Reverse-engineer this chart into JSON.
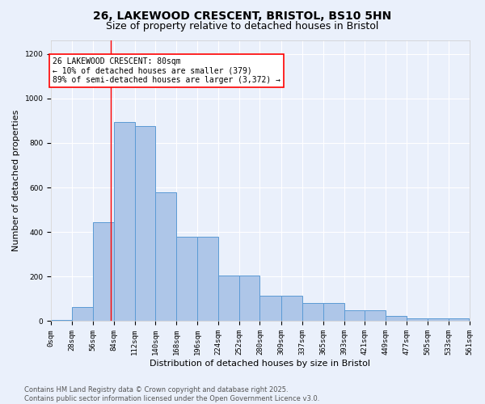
{
  "title_line1": "26, LAKEWOOD CRESCENT, BRISTOL, BS10 5HN",
  "title_line2": "Size of property relative to detached houses in Bristol",
  "xlabel": "Distribution of detached houses by size in Bristol",
  "ylabel": "Number of detached properties",
  "bar_values": [
    5,
    65,
    445,
    895,
    875,
    580,
    378,
    378,
    205,
    205,
    115,
    115,
    83,
    83,
    50,
    50,
    22,
    14,
    12,
    14
  ],
  "bin_edges": [
    0,
    28,
    56,
    84,
    112,
    140,
    168,
    196,
    224,
    252,
    280,
    309,
    337,
    365,
    393,
    421,
    449,
    477,
    505,
    533,
    561
  ],
  "tick_labels": [
    "0sqm",
    "28sqm",
    "56sqm",
    "84sqm",
    "112sqm",
    "140sqm",
    "168sqm",
    "196sqm",
    "224sqm",
    "252sqm",
    "280sqm",
    "309sqm",
    "337sqm",
    "365sqm",
    "393sqm",
    "421sqm",
    "449sqm",
    "477sqm",
    "505sqm",
    "533sqm",
    "561sqm"
  ],
  "bar_color": "#aec6e8",
  "bar_edge_color": "#5b9bd5",
  "bg_color": "#eaf0fb",
  "grid_color": "#ffffff",
  "vline_x": 80,
  "vline_color": "red",
  "ylim": [
    0,
    1260
  ],
  "yticks": [
    0,
    200,
    400,
    600,
    800,
    1000,
    1200
  ],
  "annotation_box_text": "26 LAKEWOOD CRESCENT: 80sqm\n← 10% of detached houses are smaller (379)\n89% of semi-detached houses are larger (3,372) →",
  "footer_text": "Contains HM Land Registry data © Crown copyright and database right 2025.\nContains public sector information licensed under the Open Government Licence v3.0.",
  "title_fontsize": 10,
  "subtitle_fontsize": 9,
  "axis_label_fontsize": 8,
  "tick_fontsize": 6.5,
  "annotation_fontsize": 7,
  "footer_fontsize": 6
}
